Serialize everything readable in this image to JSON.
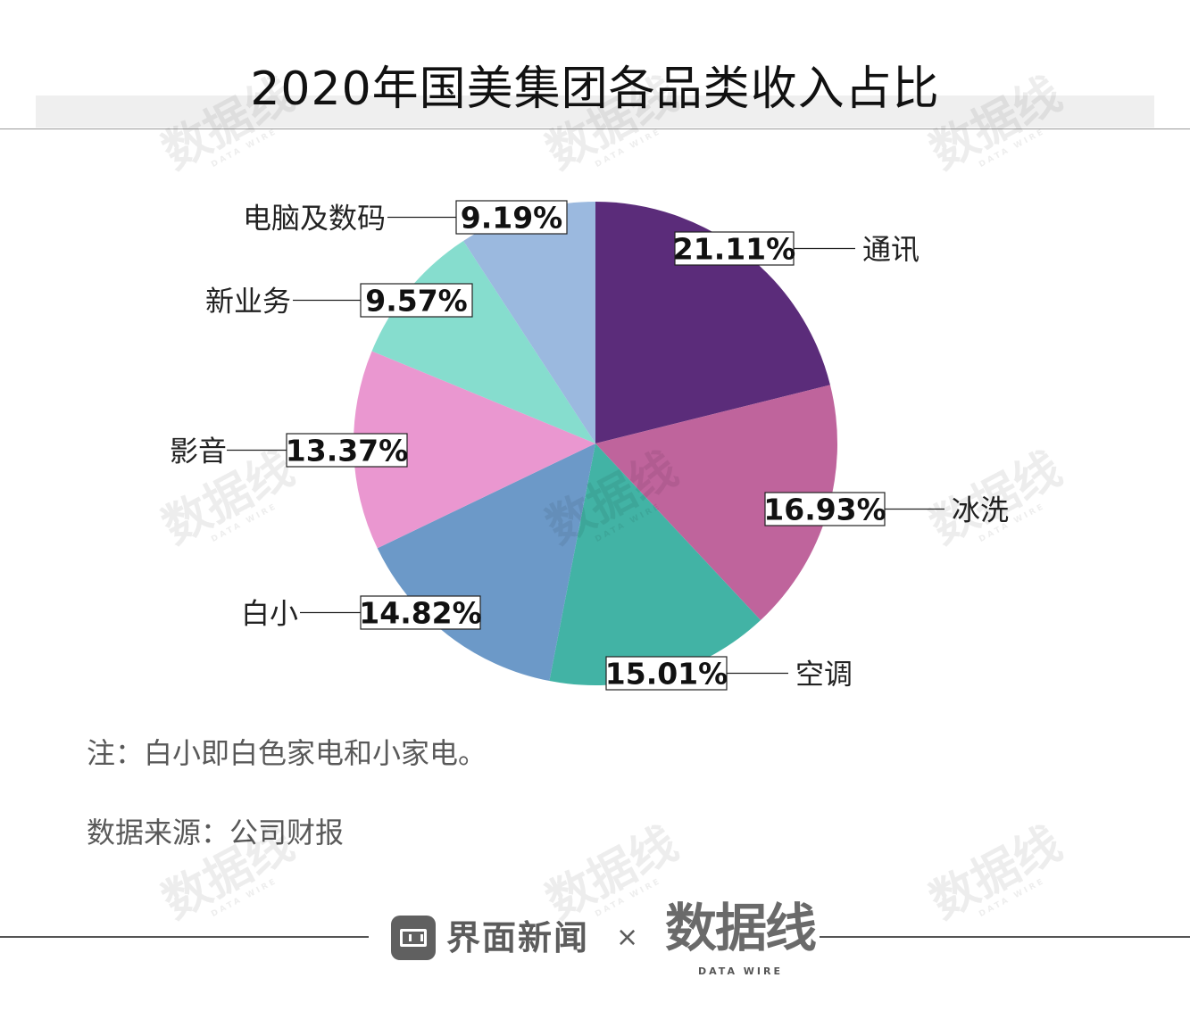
{
  "title": "2020年国美集团各品类收入占比",
  "chart_data": {
    "type": "pie",
    "title": "2020年国美集团各品类收入占比",
    "slices": [
      {
        "label": "通讯",
        "value": 21.11,
        "display": "21.11%",
        "color": "#5b2c7a"
      },
      {
        "label": "冰洗",
        "value": 16.93,
        "display": "16.93%",
        "color": "#bf649c"
      },
      {
        "label": "空调",
        "value": 15.01,
        "display": "15.01%",
        "color": "#42b3a5"
      },
      {
        "label": "白小",
        "value": 14.82,
        "display": "14.82%",
        "color": "#6c99c8"
      },
      {
        "label": "影音",
        "value": 13.37,
        "display": "13.37%",
        "color": "#ea97d0"
      },
      {
        "label": "新业务",
        "value": 9.57,
        "display": "9.57%",
        "color": "#86ddce"
      },
      {
        "label": "电脑及数码",
        "value": 9.19,
        "display": "9.19%",
        "color": "#9bb9df"
      }
    ],
    "start_angle_deg": 0,
    "direction": "clockwise"
  },
  "notes": {
    "note": "注：白小即白色家电和小家电。",
    "source": "数据来源：公司财报"
  },
  "footer": {
    "publisher": "界面新闻",
    "times": "×",
    "partner": "数据线",
    "partner_sub": "DATA WIRE"
  }
}
